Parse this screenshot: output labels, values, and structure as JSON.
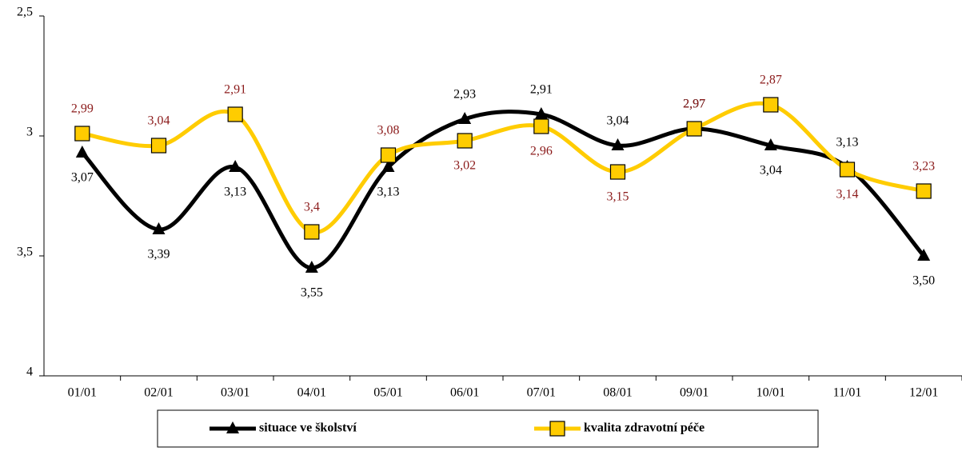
{
  "chart_data": {
    "type": "line",
    "categories": [
      "01/01",
      "02/01",
      "03/01",
      "04/01",
      "05/01",
      "06/01",
      "07/01",
      "08/01",
      "09/01",
      "10/01",
      "11/01",
      "12/01"
    ],
    "series": [
      {
        "name": "situace ve školství",
        "color": "#000000",
        "marker": "triangle",
        "values": [
          3.07,
          3.39,
          3.13,
          3.55,
          3.13,
          2.93,
          2.91,
          3.04,
          2.97,
          3.04,
          3.13,
          3.5
        ],
        "value_labels": [
          "3,07",
          "3,39",
          "3,13",
          "3,55",
          "3,13",
          "2,93",
          "2,91",
          "3,04",
          "2,97",
          "3,04",
          "3,13",
          "3,50"
        ]
      },
      {
        "name": "kvalita zdravotní péče",
        "color": "#FFCC00",
        "marker": "square",
        "values": [
          2.99,
          3.04,
          2.91,
          3.4,
          3.08,
          3.02,
          2.96,
          3.15,
          2.97,
          2.87,
          3.14,
          3.23
        ],
        "value_labels": [
          "2,99",
          "3,04",
          "2,91",
          "3,4",
          "3,08",
          "3,02",
          "2,96",
          "3,15",
          "2,97",
          "2,87",
          "3,14",
          "3,23"
        ]
      }
    ],
    "ylim": [
      2.5,
      4
    ],
    "y_inverted": true,
    "yticks": [
      {
        "value": 2.5,
        "label": "2,5"
      },
      3,
      {
        "value": 3.5,
        "label": "3,5"
      },
      4
    ],
    "grid": false,
    "legend": "bottom"
  }
}
